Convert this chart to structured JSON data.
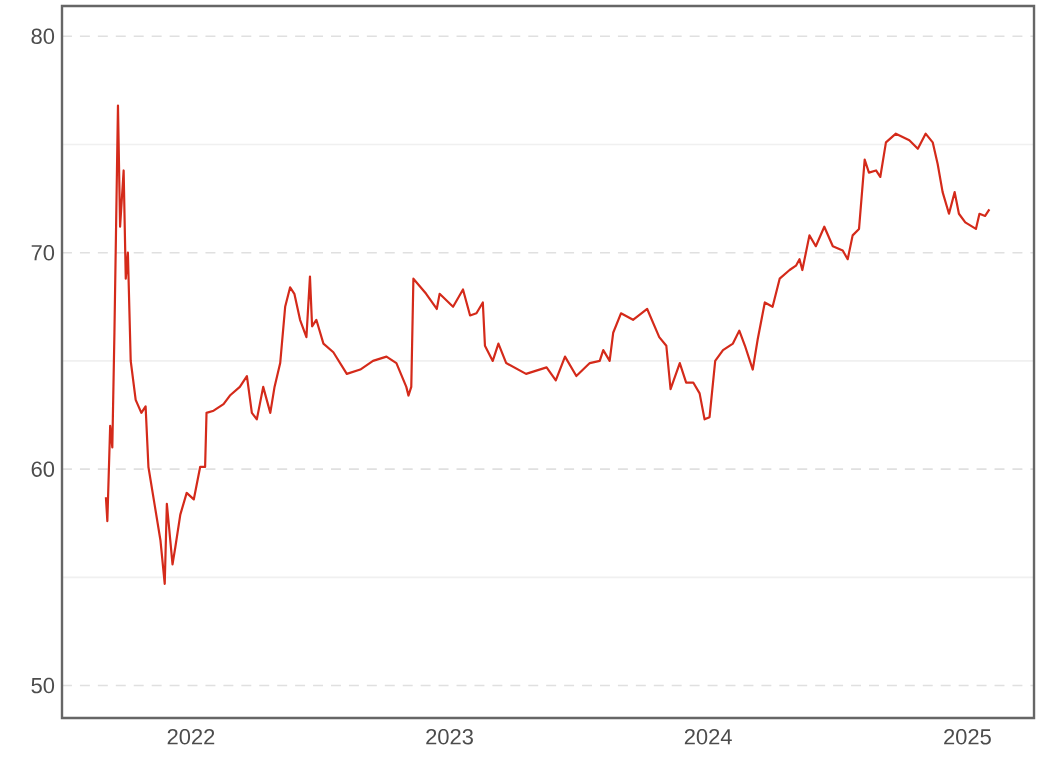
{
  "chart_data": {
    "type": "line",
    "color": "#d42a1a",
    "grid": "y",
    "marker": "none",
    "line_style": "solid",
    "xlim": [
      "2021-07-03",
      "2025-04-05"
    ],
    "ylim": [
      48.5,
      81.4
    ],
    "xticks": [
      {
        "value": "2022-01-01",
        "label": "2022"
      },
      {
        "value": "2023-01-01",
        "label": "2023"
      },
      {
        "value": "2024-01-01",
        "label": "2024"
      },
      {
        "value": "2025-01-01",
        "label": "2025"
      }
    ],
    "yticks": [
      50,
      {
        "value": 55,
        "label": null
      },
      60,
      {
        "value": 65,
        "label": null
      },
      70,
      {
        "value": 75,
        "label": null
      },
      80
    ],
    "x": [
      "2021-09-03",
      "2021-09-05",
      "2021-09-09",
      "2021-09-12",
      "2021-09-15",
      "2021-09-20",
      "2021-09-23",
      "2021-09-28",
      "2021-10-01",
      "2021-10-04",
      "2021-10-08",
      "2021-10-15",
      "2021-10-23",
      "2021-10-29",
      "2021-11-02",
      "2021-11-11",
      "2021-11-19",
      "2021-11-25",
      "2021-11-28",
      "2021-12-06",
      "2021-12-10",
      "2021-12-17",
      "2021-12-26",
      "2022-01-05",
      "2022-01-14",
      "2022-01-21",
      "2022-01-23",
      "2022-02-02",
      "2022-02-16",
      "2022-02-25",
      "2022-03-11",
      "2022-03-21",
      "2022-03-28",
      "2022-04-04",
      "2022-04-13",
      "2022-04-23",
      "2022-04-29",
      "2022-05-07",
      "2022-05-14",
      "2022-05-21",
      "2022-05-27",
      "2022-06-04",
      "2022-06-13",
      "2022-06-18",
      "2022-06-21",
      "2022-06-27",
      "2022-07-07",
      "2022-07-21",
      "2022-08-09",
      "2022-08-28",
      "2022-09-15",
      "2022-10-04",
      "2022-10-18",
      "2022-11-01",
      "2022-11-04",
      "2022-11-08",
      "2022-11-11",
      "2022-11-29",
      "2022-12-14",
      "2022-12-18",
      "2023-01-06",
      "2023-01-20",
      "2023-01-30",
      "2023-02-08",
      "2023-02-17",
      "2023-02-20",
      "2023-03-03",
      "2023-03-11",
      "2023-03-22",
      "2023-04-19",
      "2023-05-18",
      "2023-05-31",
      "2023-06-13",
      "2023-06-29",
      "2023-07-18",
      "2023-08-01",
      "2023-08-06",
      "2023-08-15",
      "2023-08-20",
      "2023-08-31",
      "2023-09-17",
      "2023-10-07",
      "2023-10-24",
      "2023-11-03",
      "2023-11-09",
      "2023-11-22",
      "2023-12-01",
      "2023-12-11",
      "2023-12-20",
      "2023-12-27",
      "2024-01-03",
      "2024-01-11",
      "2024-01-22",
      "2024-02-05",
      "2024-02-14",
      "2024-02-22",
      "2024-03-04",
      "2024-03-11",
      "2024-03-21",
      "2024-04-01",
      "2024-04-11",
      "2024-04-25",
      "2024-05-04",
      "2024-05-09",
      "2024-05-13",
      "2024-05-23",
      "2024-06-01",
      "2024-06-13",
      "2024-06-25",
      "2024-07-09",
      "2024-07-16",
      "2024-07-23",
      "2024-08-01",
      "2024-08-09",
      "2024-08-15",
      "2024-08-25",
      "2024-08-31",
      "2024-09-08",
      "2024-09-22",
      "2024-10-11",
      "2024-10-23",
      "2024-11-03",
      "2024-11-13",
      "2024-11-20",
      "2024-11-27",
      "2024-12-06",
      "2024-12-14",
      "2024-12-20",
      "2024-12-29",
      "2025-01-13",
      "2025-01-18",
      "2025-01-26",
      "2025-02-01"
    ],
    "values": [
      58.7,
      57.6,
      62.0,
      61.0,
      66.3,
      76.8,
      71.2,
      73.8,
      68.8,
      70.0,
      65.0,
      63.2,
      62.6,
      62.9,
      60.1,
      58.3,
      56.7,
      54.7,
      58.4,
      55.6,
      56.4,
      57.9,
      58.9,
      58.6,
      60.1,
      60.1,
      62.6,
      62.7,
      63.0,
      63.4,
      63.8,
      64.3,
      62.6,
      62.3,
      63.8,
      62.6,
      63.8,
      64.9,
      67.5,
      68.4,
      68.1,
      66.9,
      66.1,
      68.9,
      66.6,
      66.9,
      65.8,
      65.4,
      64.4,
      64.6,
      65.0,
      65.2,
      64.9,
      63.8,
      63.4,
      63.8,
      68.8,
      68.1,
      67.4,
      68.1,
      67.5,
      68.3,
      67.1,
      67.2,
      67.7,
      65.7,
      65.0,
      65.8,
      64.9,
      64.4,
      64.7,
      64.1,
      65.2,
      64.3,
      64.9,
      65.0,
      65.5,
      65.0,
      66.3,
      67.2,
      66.9,
      67.4,
      66.1,
      65.7,
      63.7,
      64.9,
      64.0,
      64.0,
      63.5,
      62.3,
      62.4,
      65.0,
      65.5,
      65.8,
      66.4,
      65.7,
      64.6,
      66.0,
      67.7,
      67.5,
      68.8,
      69.2,
      69.4,
      69.7,
      69.2,
      70.8,
      70.3,
      71.2,
      70.3,
      70.1,
      69.7,
      70.8,
      71.1,
      74.3,
      73.7,
      73.8,
      73.5,
      75.1,
      75.5,
      75.2,
      74.8,
      75.5,
      75.1,
      74.1,
      72.8,
      71.8,
      72.8,
      71.8,
      71.4,
      71.1,
      71.8,
      71.7,
      72.0
    ]
  }
}
